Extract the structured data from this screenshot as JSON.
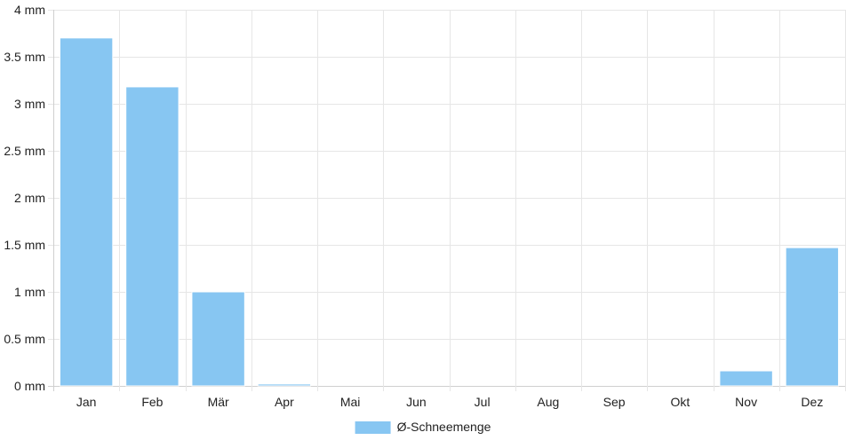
{
  "chart_data": {
    "type": "bar",
    "categories": [
      "Jan",
      "Feb",
      "Mär",
      "Apr",
      "Mai",
      "Jun",
      "Jul",
      "Aug",
      "Sep",
      "Okt",
      "Nov",
      "Dez"
    ],
    "series": [
      {
        "name": "Ø-Schneemenge",
        "color": "#87c6f2",
        "border_color": "#ffffff",
        "values": [
          3.7,
          3.18,
          1.0,
          0.02,
          0,
          0,
          0,
          0,
          0,
          0,
          0.16,
          1.47
        ]
      }
    ],
    "y_unit": "mm",
    "ylim": [
      0,
      4
    ],
    "y_ticks": [
      0,
      0.5,
      1,
      1.5,
      2,
      2.5,
      3,
      3.5,
      4
    ],
    "y_tick_labels": [
      "0 mm",
      "0.5 mm",
      "1 mm",
      "1.5 mm",
      "2 mm",
      "2.5 mm",
      "3 mm",
      "3.5 mm",
      "4 mm"
    ],
    "grid": true,
    "legend_position": "bottom-center",
    "title": "",
    "xlabel": "",
    "ylabel": ""
  }
}
